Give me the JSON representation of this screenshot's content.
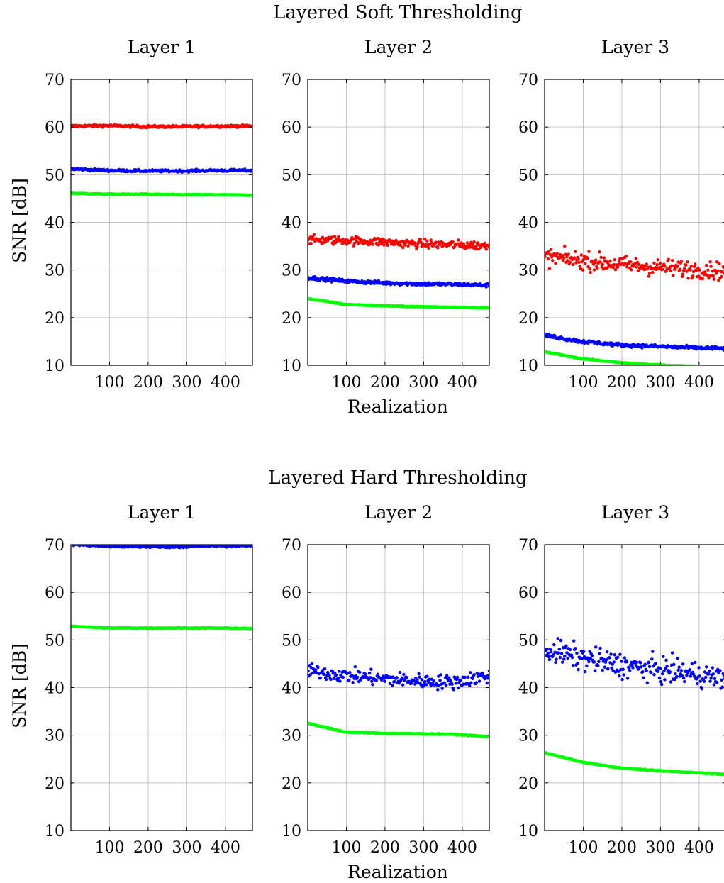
{
  "chart_data": [
    {
      "type": "scatter",
      "title": "Layered Soft Thresholding",
      "ylabel": "SNR [dB]",
      "xlabel": "Realization",
      "xlim": [
        0,
        470
      ],
      "ylim": [
        10,
        70
      ],
      "xticks": [
        100,
        200,
        300,
        400
      ],
      "yticks": [
        10,
        20,
        30,
        40,
        50,
        60,
        70
      ],
      "grid": true,
      "panels": [
        {
          "title": "Layer 1",
          "series": [
            {
              "color": "#ff0000",
              "values": [
                60.2,
                60.3,
                60.1,
                60.1,
                60.2,
                60.2
              ]
            },
            {
              "color": "#0000ff",
              "values": [
                51.2,
                50.9,
                50.8,
                50.8,
                50.9,
                50.9
              ]
            },
            {
              "color": "#00ff00",
              "values": [
                46.1,
                45.9,
                45.9,
                45.8,
                45.8,
                45.7
              ]
            }
          ]
        },
        {
          "title": "Layer 2",
          "series": [
            {
              "color": "#ff0000",
              "values": [
                36.3,
                36.2,
                35.9,
                35.5,
                35.3,
                35.1
              ]
            },
            {
              "color": "#0000ff",
              "values": [
                28.4,
                27.7,
                27.3,
                27.1,
                27.0,
                26.8
              ]
            },
            {
              "color": "#00ff00",
              "values": [
                24.0,
                22.8,
                22.5,
                22.3,
                22.2,
                22.0
              ]
            }
          ]
        },
        {
          "title": "Layer 3",
          "series": [
            {
              "color": "#ff0000",
              "values": [
                32.8,
                32.0,
                31.2,
                30.6,
                30.2,
                29.7
              ]
            },
            {
              "color": "#0000ff",
              "values": [
                16.3,
                15.0,
                14.3,
                14.0,
                13.7,
                13.5
              ]
            },
            {
              "color": "#00ff00",
              "values": [
                12.8,
                11.4,
                10.6,
                10.1,
                9.8,
                9.6
              ]
            }
          ]
        }
      ]
    },
    {
      "type": "scatter",
      "title": "Layered Hard Thresholding",
      "ylabel": "SNR [dB]",
      "xlabel": "Realization",
      "xlim": [
        0,
        470
      ],
      "ylim": [
        10,
        70
      ],
      "xticks": [
        100,
        200,
        300,
        400
      ],
      "yticks": [
        10,
        20,
        30,
        40,
        50,
        60,
        70
      ],
      "grid": true,
      "panels": [
        {
          "title": "Layer 1",
          "series": [
            {
              "color": "#0000ff",
              "values": [
                70.1,
                69.7,
                69.6,
                69.6,
                69.8,
                69.8
              ]
            },
            {
              "color": "#00ff00",
              "values": [
                52.9,
                52.5,
                52.5,
                52.5,
                52.5,
                52.4
              ]
            }
          ]
        },
        {
          "title": "Layer 2",
          "series": [
            {
              "color": "#0000ff",
              "values": [
                43.5,
                42.6,
                41.9,
                41.4,
                41.1,
                42.5
              ]
            },
            {
              "color": "#00ff00",
              "values": [
                32.5,
                30.7,
                30.4,
                30.3,
                30.2,
                29.7
              ]
            }
          ]
        },
        {
          "title": "Layer 3",
          "series": [
            {
              "color": "#0000ff",
              "values": [
                48.0,
                46.2,
                44.8,
                43.8,
                43.0,
                41.8
              ]
            },
            {
              "color": "#00ff00",
              "values": [
                26.3,
                24.4,
                23.2,
                22.6,
                22.2,
                21.8
              ]
            }
          ]
        }
      ]
    }
  ]
}
